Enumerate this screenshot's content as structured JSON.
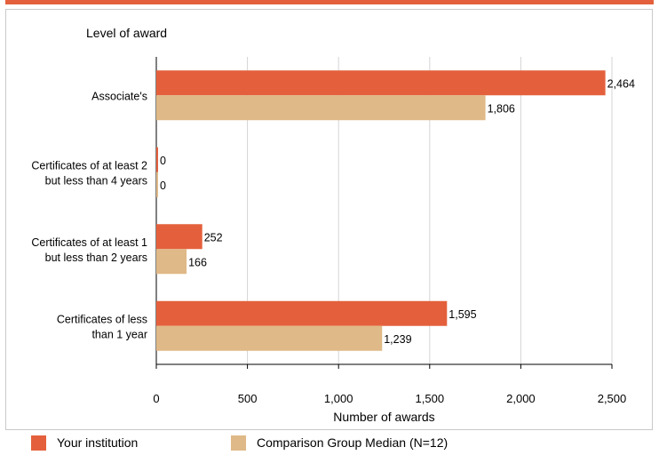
{
  "colors": {
    "top_rule": "#e4603c",
    "institution": "#e4603c",
    "comparison": "#dfb987",
    "grid": "#d4d4d4",
    "axis": "#000000"
  },
  "chart_data": {
    "type": "bar",
    "orientation": "horizontal",
    "category_axis_title": "Level of award",
    "xlabel": "Number of awards",
    "xlim": [
      0,
      2500
    ],
    "xticks": [
      0,
      500,
      1000,
      1500,
      2000,
      2500
    ],
    "xtick_labels": [
      "0",
      "500",
      "1,000",
      "1,500",
      "2,000",
      "2,500"
    ],
    "grid": true,
    "categories": [
      [
        "Associate's"
      ],
      [
        "Certificates of at least 2",
        "but less than 4 years"
      ],
      [
        "Certificates of at least 1",
        "but  less than 2 years"
      ],
      [
        "Certificates of less",
        "than 1 year"
      ]
    ],
    "series": [
      {
        "name": "Your institution",
        "values": [
          2464,
          0,
          252,
          1595
        ],
        "labels": [
          "2,464",
          "0",
          "252",
          "1,595"
        ]
      },
      {
        "name": "Comparison Group Median (N=12)",
        "values": [
          1806,
          0,
          166,
          1239
        ],
        "labels": [
          "1,806",
          "0",
          "166",
          "1,239"
        ]
      }
    ],
    "legend_position": "bottom"
  }
}
